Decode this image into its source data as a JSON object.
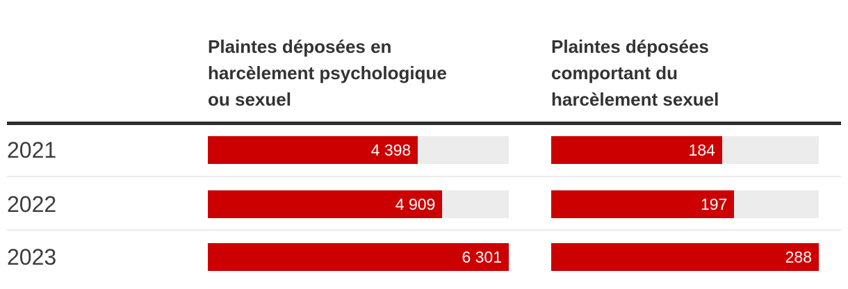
{
  "headers": {
    "col1": "Plaintes déposées en harcèlement psychologique ou sexuel",
    "col1_lines": [
      "Plaintes déposées en",
      "harcèlement psychologique",
      "ou sexuel"
    ],
    "col2": "Plaintes déposées comportant du harcèlement sexuel",
    "col2_lines": [
      "Plaintes déposées",
      "comportant du",
      "harcèlement sexuel"
    ]
  },
  "chart_data": {
    "type": "bar",
    "orientation": "horizontal",
    "categories": [
      "2021",
      "2022",
      "2023"
    ],
    "series": [
      {
        "name": "Plaintes déposées en harcèlement psychologique ou sexuel",
        "values": [
          4398,
          4909,
          6301
        ],
        "labels": [
          "4 398",
          "4 909",
          "6 301"
        ],
        "axis_max": 6301
      },
      {
        "name": "Plaintes déposées comportant du harcèlement sexuel",
        "values": [
          184,
          197,
          288
        ],
        "labels": [
          "184",
          "197",
          "288"
        ],
        "axis_max": 288
      }
    ],
    "bar_color": "#cc0000",
    "track_color": "#ececec",
    "value_label_color": "#ffffff",
    "value_label_position": "inside-end",
    "grid": false,
    "legend": false
  }
}
